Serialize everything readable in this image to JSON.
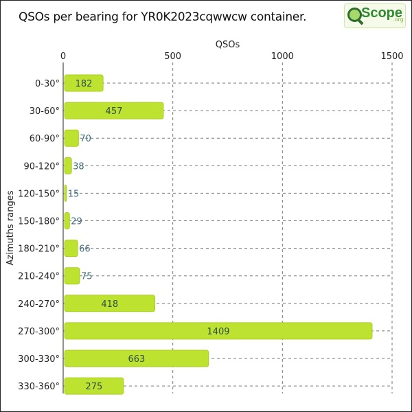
{
  "header": {
    "title": "QSOs per bearing for YR0K2023cqwwcw container.",
    "logo_text": "Scope",
    "logo_suffix": ".org",
    "logo_icon": "magnifier-icon"
  },
  "chart_data": {
    "type": "bar",
    "orientation": "horizontal",
    "title": "QSOs per bearing for YR0K2023cqwwcw container.",
    "xlabel": "QSOs",
    "ylabel": "Azimuths ranges",
    "xlim": [
      0,
      1500
    ],
    "xticks": [
      0,
      500,
      1000,
      1500
    ],
    "x_axis_position": "top",
    "grid": true,
    "bar_color": "#bde22f",
    "categories": [
      "0-30°",
      "30-60°",
      "60-90°",
      "90-120°",
      "120-150°",
      "150-180°",
      "180-210°",
      "210-240°",
      "240-270°",
      "270-300°",
      "300-330°",
      "330-360°"
    ],
    "values": [
      182,
      457,
      70,
      38,
      15,
      29,
      66,
      75,
      418,
      1409,
      663,
      275
    ]
  }
}
